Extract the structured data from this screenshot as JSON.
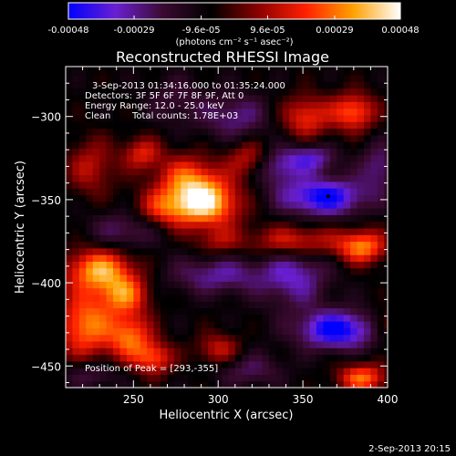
{
  "chart_data": {
    "type": "heatmap",
    "title": "Reconstructed RHESSI Image",
    "xlabel": "Heliocentric X (arcsec)",
    "ylabel": "Heliocentric Y (arcsec)",
    "xlim": [
      210,
      400
    ],
    "ylim": [
      -463,
      -270
    ],
    "x_ticks": [
      250,
      300,
      350,
      400
    ],
    "y_ticks": [
      -300,
      -350,
      -400,
      -450
    ],
    "colorbar": {
      "range": [
        -0.00048,
        0.00048
      ],
      "tick_values": [
        -0.00048,
        -0.00029,
        -9.6e-05,
        9.6e-05,
        0.00029,
        0.00048
      ],
      "tick_labels": [
        "-0.00048",
        "-0.00029",
        "-9.6e-05",
        "9.6e-05",
        "0.00029",
        "0.00048"
      ],
      "unit_label": "(photons cm⁻² s⁻¹ asec⁻²)",
      "colors": [
        "#0000ff",
        "#6a1fd0",
        "#3a0a30",
        "#000000",
        "#8a0000",
        "#ff2000",
        "#ffa000",
        "#ffffff"
      ]
    },
    "annotations": {
      "time_range": "3-Sep-2013 01:34:16.000 to 01:35:24.000",
      "detectors": "Detectors: 3F 5F 6F 7F 8F 9F, Att 0",
      "energy_range": "Energy Range: 12.0 - 25.0 keV",
      "algorithm": "Clean",
      "total_counts": "Total counts: 1.78E+03",
      "peak": "Position of Peak = [293,-355]"
    },
    "peak_position": [
      293,
      -355
    ],
    "blobs": [
      {
        "x": 293,
        "y": -352,
        "value": 0.00048,
        "sx": 14,
        "sy": 10
      },
      {
        "x": 282,
        "y": -337,
        "value": 0.0003,
        "sx": 13,
        "sy": 10
      },
      {
        "x": 268,
        "y": -355,
        "value": 0.00025,
        "sx": 12,
        "sy": 8
      },
      {
        "x": 255,
        "y": -322,
        "value": 0.00024,
        "sx": 8,
        "sy": 7
      },
      {
        "x": 225,
        "y": -330,
        "value": 0.0002,
        "sx": 10,
        "sy": 12
      },
      {
        "x": 318,
        "y": -325,
        "value": 0.00022,
        "sx": 9,
        "sy": 8
      },
      {
        "x": 352,
        "y": -300,
        "value": 0.00028,
        "sx": 10,
        "sy": 9
      },
      {
        "x": 380,
        "y": -297,
        "value": 0.00034,
        "sx": 9,
        "sy": 8
      },
      {
        "x": 345,
        "y": -375,
        "value": 0.0003,
        "sx": 18,
        "sy": 7
      },
      {
        "x": 385,
        "y": -378,
        "value": 0.00038,
        "sx": 10,
        "sy": 7
      },
      {
        "x": 300,
        "y": -375,
        "value": 0.00015,
        "sx": 10,
        "sy": 6
      },
      {
        "x": 230,
        "y": -392,
        "value": 0.00042,
        "sx": 14,
        "sy": 9
      },
      {
        "x": 245,
        "y": -407,
        "value": 0.00032,
        "sx": 10,
        "sy": 8
      },
      {
        "x": 222,
        "y": -425,
        "value": 0.00038,
        "sx": 12,
        "sy": 14
      },
      {
        "x": 248,
        "y": -432,
        "value": 0.00034,
        "sx": 9,
        "sy": 10
      },
      {
        "x": 262,
        "y": -445,
        "value": 0.0003,
        "sx": 8,
        "sy": 7
      },
      {
        "x": 300,
        "y": -440,
        "value": 0.00022,
        "sx": 9,
        "sy": 7
      },
      {
        "x": 385,
        "y": -457,
        "value": 0.00036,
        "sx": 10,
        "sy": 6
      },
      {
        "x": 398,
        "y": -425,
        "value": 0.00018,
        "sx": 5,
        "sy": 6
      },
      {
        "x": 362,
        "y": -348,
        "value": -0.0004,
        "sx": 18,
        "sy": 8
      },
      {
        "x": 370,
        "y": -428,
        "value": -0.00042,
        "sx": 16,
        "sy": 8
      },
      {
        "x": 300,
        "y": -395,
        "value": -0.00022,
        "sx": 20,
        "sy": 8
      },
      {
        "x": 345,
        "y": -395,
        "value": -0.00025,
        "sx": 14,
        "sy": 14
      },
      {
        "x": 245,
        "y": -368,
        "value": -0.00018,
        "sx": 14,
        "sy": 8
      },
      {
        "x": 225,
        "y": -455,
        "value": -0.00015,
        "sx": 12,
        "sy": 6
      },
      {
        "x": 318,
        "y": -452,
        "value": -0.00016,
        "sx": 14,
        "sy": 7
      },
      {
        "x": 310,
        "y": -300,
        "value": -0.0002,
        "sx": 14,
        "sy": 10
      },
      {
        "x": 335,
        "y": -330,
        "value": -0.00022,
        "sx": 10,
        "sy": 8
      },
      {
        "x": 355,
        "y": -325,
        "value": -0.00026,
        "sx": 10,
        "sy": 6
      },
      {
        "x": 275,
        "y": -290,
        "value": -0.00012,
        "sx": 12,
        "sy": 10
      },
      {
        "x": 395,
        "y": -330,
        "value": -0.0002,
        "sx": 8,
        "sy": 10
      }
    ]
  },
  "footer": {
    "date_stamp": "2-Sep-2013 20:15"
  }
}
